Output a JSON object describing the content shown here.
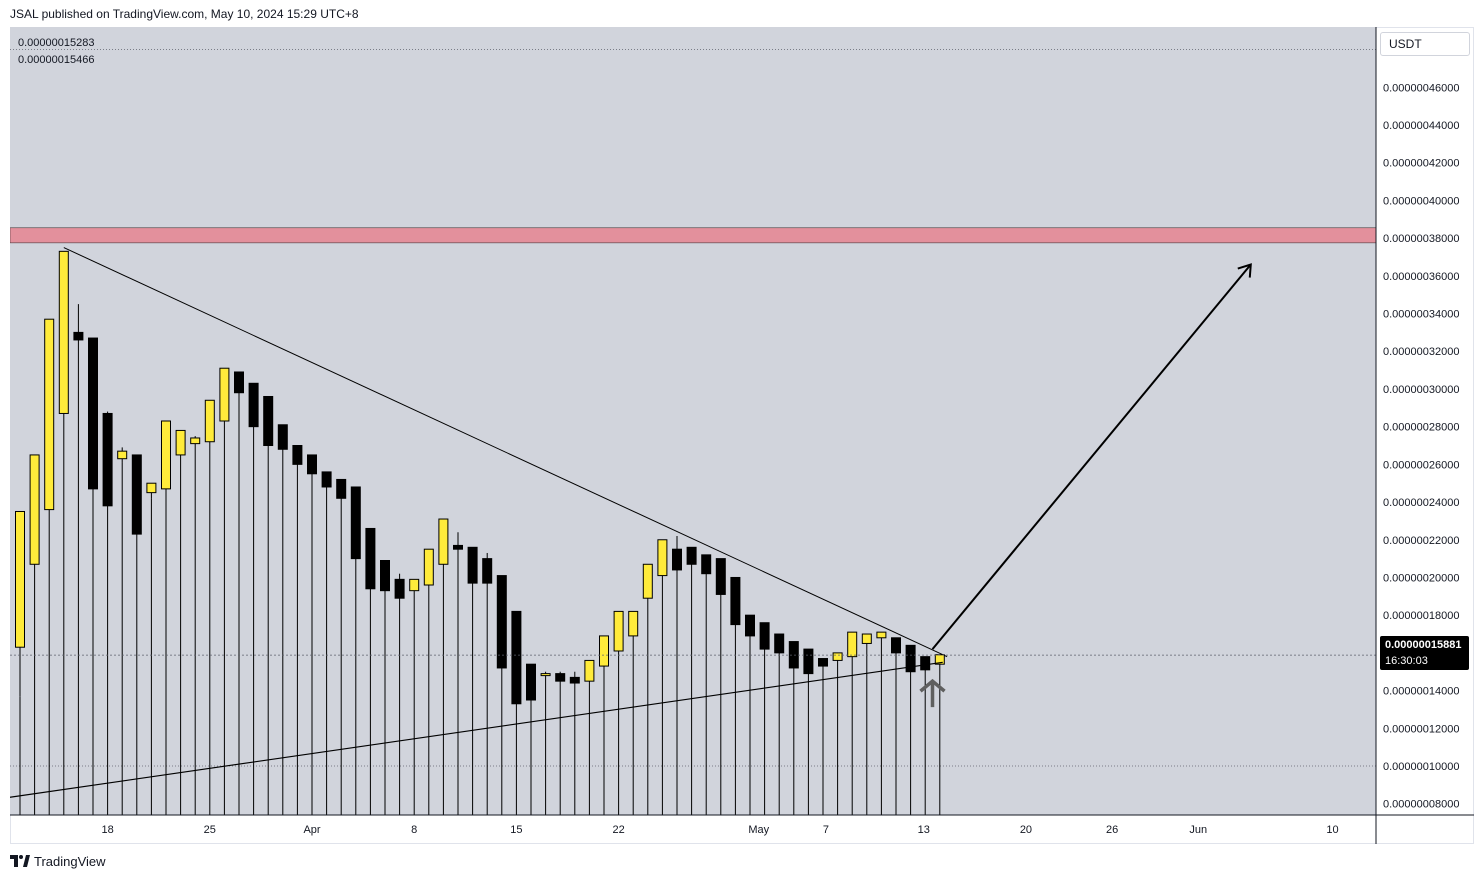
{
  "header": {
    "publish_text": "JSAL published on TradingView.com, May 10, 2024 15:29 UTC+8"
  },
  "ohlc_readout": [
    "0.00000015283",
    "0.00000015466"
  ],
  "currency_label": "USDT",
  "last_price": {
    "value": "0.00000015881",
    "countdown": "16:30:03"
  },
  "footer": {
    "brand": "TradingView",
    "logo_icon": "tradingview-logo-icon"
  },
  "colors": {
    "bull_candle": "#ffeb3b",
    "bear_candle": "#000000",
    "resistance_zone": "#e3909c",
    "plot_background": "#d1d4dc"
  },
  "chart_data": {
    "type": "candlestick",
    "title": "",
    "xlabel": "",
    "ylabel": "",
    "y_axis_ticks": [
      "0.00000046000",
      "0.00000044000",
      "0.00000042000",
      "0.00000040000",
      "0.00000038000",
      "0.00000036000",
      "0.00000034000",
      "0.00000032000",
      "0.00000030000",
      "0.00000028000",
      "0.00000026000",
      "0.00000024000",
      "0.00000022000",
      "0.00000020000",
      "0.00000018000",
      "0.00000014000",
      "0.00000012000",
      "0.00000010000",
      "0.00000008000"
    ],
    "x_axis_ticks": [
      "18",
      "25",
      "Apr",
      "8",
      "15",
      "22",
      "May",
      "7",
      "13",
      "20",
      "26",
      "Jun",
      "10"
    ],
    "ylim": [
      7.4e-08,
      4.92e-07
    ],
    "resistance_zone": [
      3.775e-07,
      3.855e-07
    ],
    "last_price": 1.5881e-07,
    "candles": [
      {
        "o": 16.3,
        "h": 23.5,
        "l": 13.7,
        "c": 23.5
      },
      {
        "o": 20.7,
        "h": 26.5,
        "l": 20.7,
        "c": 26.5
      },
      {
        "o": 23.6,
        "h": 33.7,
        "l": 23.6,
        "c": 33.7
      },
      {
        "o": 28.7,
        "h": 37.3,
        "l": 28.7,
        "c": 37.3
      },
      {
        "o": 33.0,
        "h": 34.5,
        "l": 32.6,
        "c": 32.6
      },
      {
        "o": 32.7,
        "h": 32.7,
        "l": 24.7,
        "c": 24.7
      },
      {
        "o": 28.7,
        "h": 28.8,
        "l": 23.8,
        "c": 23.8
      },
      {
        "o": 26.3,
        "h": 26.9,
        "l": 26.1,
        "c": 26.7
      },
      {
        "o": 26.5,
        "h": 26.5,
        "l": 22.3,
        "c": 22.3
      },
      {
        "o": 24.5,
        "h": 25.0,
        "l": 24.2,
        "c": 25.0
      },
      {
        "o": 24.7,
        "h": 28.3,
        "l": 24.7,
        "c": 28.3
      },
      {
        "o": 26.5,
        "h": 27.8,
        "l": 26.5,
        "c": 27.8
      },
      {
        "o": 27.1,
        "h": 27.5,
        "l": 27.1,
        "c": 27.4
      },
      {
        "o": 27.2,
        "h": 29.4,
        "l": 27.2,
        "c": 29.4
      },
      {
        "o": 28.3,
        "h": 31.1,
        "l": 28.3,
        "c": 31.1
      },
      {
        "o": 30.9,
        "h": 30.9,
        "l": 29.8,
        "c": 29.8
      },
      {
        "o": 30.3,
        "h": 30.3,
        "l": 28.0,
        "c": 28.0
      },
      {
        "o": 29.6,
        "h": 29.6,
        "l": 27.0,
        "c": 27.0
      },
      {
        "o": 28.1,
        "h": 28.1,
        "l": 26.8,
        "c": 26.8
      },
      {
        "o": 27.0,
        "h": 27.0,
        "l": 26.0,
        "c": 26.0
      },
      {
        "o": 26.5,
        "h": 26.5,
        "l": 25.5,
        "c": 25.5
      },
      {
        "o": 25.6,
        "h": 25.6,
        "l": 24.8,
        "c": 24.8
      },
      {
        "o": 25.2,
        "h": 25.2,
        "l": 24.2,
        "c": 24.2
      },
      {
        "o": 24.8,
        "h": 24.8,
        "l": 21.0,
        "c": 21.0
      },
      {
        "o": 22.6,
        "h": 22.6,
        "l": 19.4,
        "c": 19.4
      },
      {
        "o": 20.9,
        "h": 20.9,
        "l": 19.3,
        "c": 19.3
      },
      {
        "o": 19.9,
        "h": 20.2,
        "l": 18.9,
        "c": 18.9
      },
      {
        "o": 19.3,
        "h": 19.9,
        "l": 19.3,
        "c": 19.9
      },
      {
        "o": 19.6,
        "h": 21.5,
        "l": 19.6,
        "c": 21.5
      },
      {
        "o": 20.7,
        "h": 23.1,
        "l": 20.7,
        "c": 23.1
      },
      {
        "o": 21.7,
        "h": 22.4,
        "l": 21.5,
        "c": 21.5
      },
      {
        "o": 21.6,
        "h": 21.6,
        "l": 19.7,
        "c": 19.7
      },
      {
        "o": 21.0,
        "h": 21.3,
        "l": 19.7,
        "c": 19.7
      },
      {
        "o": 20.1,
        "h": 20.1,
        "l": 15.2,
        "c": 15.2
      },
      {
        "o": 18.2,
        "h": 18.2,
        "l": 13.3,
        "c": 13.3
      },
      {
        "o": 15.4,
        "h": 15.4,
        "l": 13.5,
        "c": 13.5
      },
      {
        "o": 14.9,
        "h": 15.0,
        "l": 14.8,
        "c": 14.9
      },
      {
        "o": 14.9,
        "h": 15.0,
        "l": 14.5,
        "c": 14.5
      },
      {
        "o": 14.7,
        "h": 15.0,
        "l": 14.4,
        "c": 14.4
      },
      {
        "o": 14.5,
        "h": 15.6,
        "l": 14.5,
        "c": 15.6
      },
      {
        "o": 15.3,
        "h": 16.9,
        "l": 15.3,
        "c": 16.9
      },
      {
        "o": 16.1,
        "h": 18.2,
        "l": 16.1,
        "c": 18.2
      },
      {
        "o": 16.9,
        "h": 18.2,
        "l": 16.9,
        "c": 18.2
      },
      {
        "o": 18.9,
        "h": 20.7,
        "l": 18.9,
        "c": 20.7
      },
      {
        "o": 20.1,
        "h": 22.0,
        "l": 20.1,
        "c": 22.0
      },
      {
        "o": 21.5,
        "h": 22.2,
        "l": 20.4,
        "c": 20.4
      },
      {
        "o": 21.6,
        "h": 21.6,
        "l": 20.7,
        "c": 20.7
      },
      {
        "o": 21.2,
        "h": 21.2,
        "l": 20.2,
        "c": 20.2
      },
      {
        "o": 21.0,
        "h": 21.0,
        "l": 19.1,
        "c": 19.1
      },
      {
        "o": 20.0,
        "h": 20.0,
        "l": 17.5,
        "c": 17.5
      },
      {
        "o": 18.0,
        "h": 18.0,
        "l": 16.9,
        "c": 16.9
      },
      {
        "o": 17.6,
        "h": 17.6,
        "l": 16.2,
        "c": 16.2
      },
      {
        "o": 17.0,
        "h": 17.0,
        "l": 16.0,
        "c": 16.0
      },
      {
        "o": 16.6,
        "h": 16.6,
        "l": 15.2,
        "c": 15.2
      },
      {
        "o": 16.2,
        "h": 16.2,
        "l": 14.9,
        "c": 14.9
      },
      {
        "o": 15.7,
        "h": 15.7,
        "l": 15.3,
        "c": 15.3
      },
      {
        "o": 15.6,
        "h": 16.0,
        "l": 15.6,
        "c": 16.0
      },
      {
        "o": 15.8,
        "h": 17.1,
        "l": 15.8,
        "c": 17.1
      },
      {
        "o": 16.5,
        "h": 17.0,
        "l": 16.5,
        "c": 17.0
      },
      {
        "o": 16.8,
        "h": 17.1,
        "l": 16.8,
        "c": 17.1
      },
      {
        "o": 16.8,
        "h": 16.8,
        "l": 16.0,
        "c": 16.0
      },
      {
        "o": 16.4,
        "h": 16.4,
        "l": 15.0,
        "c": 15.0
      },
      {
        "o": 15.8,
        "h": 15.8,
        "l": 15.1,
        "c": 15.1
      },
      {
        "o": 15.4,
        "h": 15.9,
        "l": 15.4,
        "c": 15.9
      }
    ],
    "annotations": {
      "descending_trendline": [
        [
          3,
          3.75e-07
        ],
        [
          63.5,
          1.58e-07
        ]
      ],
      "ascending_trendline": [
        [
          -1.5,
          8.25e-08
        ],
        [
          63.2,
          1.55e-07
        ]
      ],
      "projection_arrow": [
        [
          62.5,
          1.62e-07
        ],
        [
          84.3,
          3.66e-07
        ]
      ],
      "up_arrow_marker": [
        62.5,
        1.45e-07
      ]
    }
  }
}
